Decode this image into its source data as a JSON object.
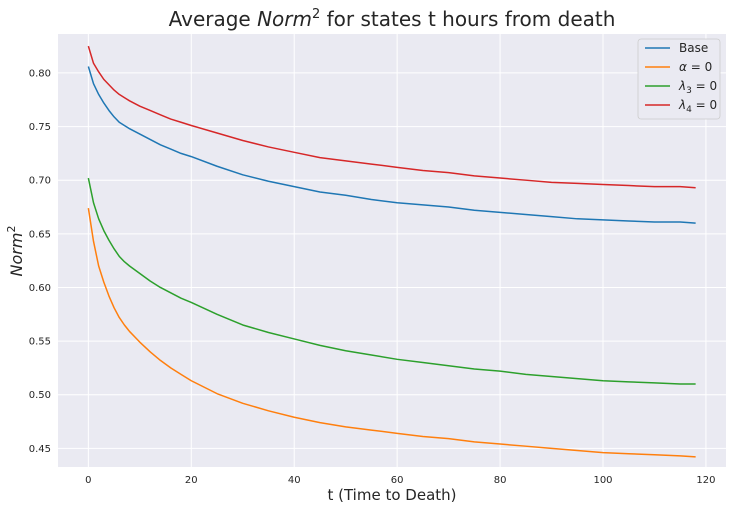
{
  "chart_data": {
    "type": "line",
    "title": "Average Norm² for states t hours from death",
    "title_parts": {
      "prefix": "Average ",
      "math": "Norm",
      "sup": "2",
      "suffix": " for states t hours from death"
    },
    "xlabel": "t (Time to Death)",
    "ylabel_parts": {
      "math": "Norm",
      "sup": "2"
    },
    "xlim": [
      -5.9,
      123.9
    ],
    "ylim": [
      0.4326,
      0.8363
    ],
    "xticks": [
      0,
      20,
      40,
      60,
      80,
      100,
      120
    ],
    "xtick_labels": [
      "0",
      "20",
      "40",
      "60",
      "80",
      "100",
      "120"
    ],
    "yticks": [
      0.45,
      0.5,
      0.55,
      0.6,
      0.65,
      0.7,
      0.75,
      0.8
    ],
    "ytick_labels": [
      "0.45",
      "0.50",
      "0.55",
      "0.60",
      "0.65",
      "0.70",
      "0.75",
      "0.80"
    ],
    "grid": true,
    "legend_position": "top-right",
    "x": [
      0,
      1,
      2,
      3,
      4,
      5,
      6,
      7,
      8,
      10,
      12,
      14,
      16,
      18,
      20,
      25,
      30,
      35,
      40,
      45,
      50,
      55,
      60,
      65,
      70,
      75,
      80,
      85,
      90,
      95,
      100,
      105,
      110,
      115,
      118
    ],
    "series": [
      {
        "name": "Base",
        "legend": {
          "math": "",
          "sub": "",
          "rest": "Base"
        },
        "color": "#1f77b4",
        "values": [
          0.806,
          0.79,
          0.78,
          0.772,
          0.765,
          0.759,
          0.754,
          0.751,
          0.748,
          0.743,
          0.738,
          0.733,
          0.729,
          0.725,
          0.722,
          0.713,
          0.705,
          0.699,
          0.694,
          0.689,
          0.686,
          0.682,
          0.679,
          0.677,
          0.675,
          0.672,
          0.67,
          0.668,
          0.666,
          0.664,
          0.663,
          0.662,
          0.661,
          0.661,
          0.66
        ]
      },
      {
        "name": "alpha = 0",
        "legend": {
          "math": "α",
          "sub": "",
          "rest": " = 0"
        },
        "color": "#ff7f0e",
        "values": [
          0.674,
          0.643,
          0.62,
          0.605,
          0.592,
          0.581,
          0.572,
          0.565,
          0.559,
          0.549,
          0.54,
          0.532,
          0.525,
          0.519,
          0.513,
          0.501,
          0.492,
          0.485,
          0.479,
          0.474,
          0.47,
          0.467,
          0.464,
          0.461,
          0.459,
          0.456,
          0.454,
          0.452,
          0.45,
          0.448,
          0.446,
          0.445,
          0.444,
          0.443,
          0.442
        ]
      },
      {
        "name": "lambda3 = 0",
        "legend": {
          "math": "λ",
          "sub": "3",
          "rest": " = 0"
        },
        "color": "#2ca02c",
        "values": [
          0.702,
          0.679,
          0.664,
          0.653,
          0.644,
          0.636,
          0.629,
          0.624,
          0.62,
          0.613,
          0.606,
          0.6,
          0.595,
          0.59,
          0.586,
          0.575,
          0.565,
          0.558,
          0.552,
          0.546,
          0.541,
          0.537,
          0.533,
          0.53,
          0.527,
          0.524,
          0.522,
          0.519,
          0.517,
          0.515,
          0.513,
          0.512,
          0.511,
          0.51,
          0.51
        ]
      },
      {
        "name": "lambda4 = 0",
        "legend": {
          "math": "λ",
          "sub": "4",
          "rest": " = 0"
        },
        "color": "#d62728",
        "values": [
          0.825,
          0.809,
          0.801,
          0.794,
          0.789,
          0.784,
          0.78,
          0.777,
          0.774,
          0.769,
          0.765,
          0.761,
          0.757,
          0.754,
          0.751,
          0.744,
          0.737,
          0.731,
          0.726,
          0.721,
          0.718,
          0.715,
          0.712,
          0.709,
          0.707,
          0.704,
          0.702,
          0.7,
          0.698,
          0.697,
          0.696,
          0.695,
          0.694,
          0.694,
          0.693
        ]
      }
    ]
  }
}
